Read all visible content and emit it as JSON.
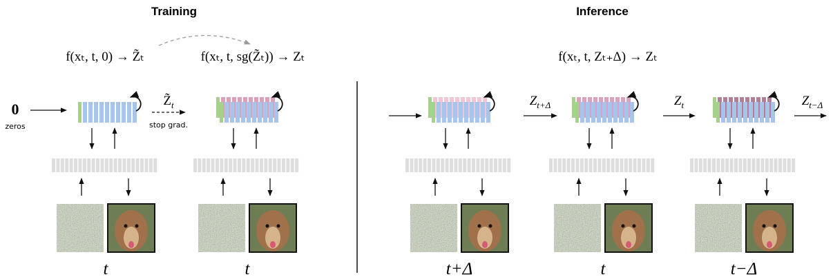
{
  "training": {
    "title": "Training",
    "formulas": [
      "f(xₜ, t, 0) → Z̃ₜ",
      "f(xₜ, t, sg(Z̃ₜ)) → Zₜ"
    ],
    "input": {
      "symbol": "0",
      "label": "zeros"
    },
    "transfer": {
      "base": "Z̃",
      "sub": "t",
      "label": "stop grad."
    },
    "steps": [
      {
        "time": "t"
      },
      {
        "time": "t"
      }
    ]
  },
  "inference": {
    "title": "Inference",
    "formula": "f(xₜ, t, Zₜ₊Δ) → Zₜ",
    "outputs": [
      {
        "base": "Z",
        "sub": "t+Δ"
      },
      {
        "base": "Z",
        "sub": "t"
      },
      {
        "base": "Z",
        "sub": "t−Δ"
      }
    ],
    "steps": [
      {
        "time": "t+Δ"
      },
      {
        "time": "t"
      },
      {
        "time": "t−Δ"
      }
    ]
  }
}
